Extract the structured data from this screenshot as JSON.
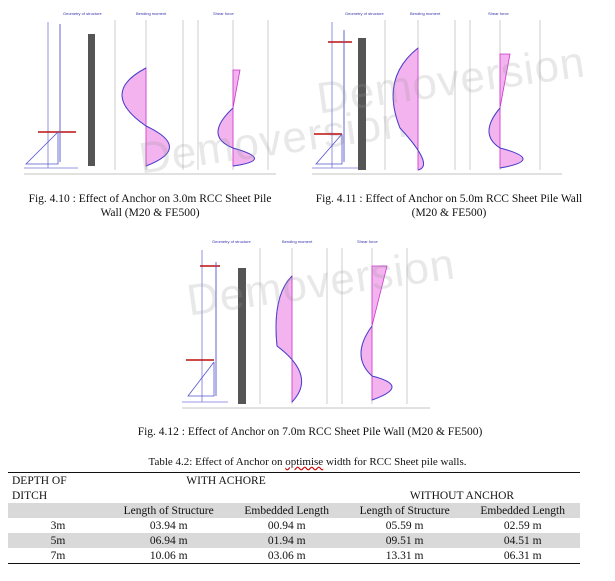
{
  "figures": [
    {
      "id": "fig-4-10",
      "caption_line1": "Fig. 4.10 : Effect of Anchor on 3.0m RCC Sheet Pile",
      "caption_line2": "Wall (M20 & FE500)",
      "panel_titles": [
        "Geometry of structure",
        "Bending moment",
        "Shear force"
      ]
    },
    {
      "id": "fig-4-11",
      "caption_line1": "Fig. 4.11 : Effect of Anchor on 5.0m RCC Sheet Pile Wall",
      "caption_line2": "(M20 & FE500)",
      "panel_titles": [
        "Geometry of structure",
        "Bending moment",
        "Shear force"
      ]
    },
    {
      "id": "fig-4-12",
      "caption_line1": "Fig. 4.12 : Effect of Anchor on 7.0m RCC Sheet Pile Wall (M20 & FE500)",
      "panel_titles": [
        "Geometry of structure",
        "Bending moment",
        "Shear force"
      ]
    }
  ],
  "watermark": "Demoversion",
  "table": {
    "caption_before": "Table 4.2: Effect of Anchor on ",
    "caption_mark": "optimise",
    "caption_after": " width for RCC Sheet pile walls.",
    "depth_header_1": "DEPTH OF",
    "depth_header_2": "DITCH",
    "with_anchor_header": "WITH ACHORE",
    "without_anchor_header": "WITHOUT ANCHOR",
    "sub_headers": [
      "Length of Structure",
      "Embedded Length",
      "Length of Structure",
      "Embedded Length"
    ],
    "rows": [
      {
        "depth": "3m",
        "wa_length": "03.94 m",
        "wa_embedded": "00.94 m",
        "wo_length": "05.59 m",
        "wo_embedded": "02.59 m"
      },
      {
        "depth": "5m",
        "wa_length": "06.94 m",
        "wa_embedded": "01.94 m",
        "wo_length": "09.51 m",
        "wo_embedded": "04.51 m"
      },
      {
        "depth": "7m",
        "wa_length": "10.06 m",
        "wa_embedded": "03.06 m",
        "wo_length": "13.31 m",
        "wo_embedded": "06.31 m"
      }
    ]
  }
}
